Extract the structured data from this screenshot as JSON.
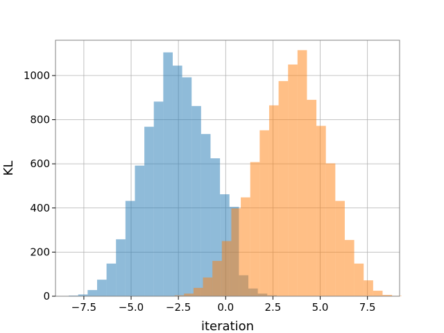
{
  "chart_data": {
    "type": "histogram",
    "title": "",
    "xlabel": "iteration",
    "ylabel": "KL",
    "xlim": [
      -9.0,
      9.2
    ],
    "ylim": [
      0,
      1160
    ],
    "grid": true,
    "legend": "none",
    "bar_alpha": 0.5,
    "x_ticks": [
      {
        "value": -7.5,
        "label": "−7.5"
      },
      {
        "value": -5.0,
        "label": "−5.0"
      },
      {
        "value": -2.5,
        "label": "−2.5"
      },
      {
        "value": 0.0,
        "label": "0.0"
      },
      {
        "value": 2.5,
        "label": "2.5"
      },
      {
        "value": 5.0,
        "label": "5.0"
      },
      {
        "value": 7.5,
        "label": "7.5"
      }
    ],
    "y_ticks": [
      {
        "value": 0,
        "label": "0"
      },
      {
        "value": 200,
        "label": "200"
      },
      {
        "value": 400,
        "label": "400"
      },
      {
        "value": 600,
        "label": "600"
      },
      {
        "value": 800,
        "label": "800"
      },
      {
        "value": 1000,
        "label": "1000"
      }
    ],
    "series": [
      {
        "color": "#1f77b4",
        "bin_start": -8.3,
        "bin_width": 0.5,
        "values": [
          3,
          8,
          28,
          75,
          148,
          258,
          432,
          592,
          768,
          882,
          1105,
          1045,
          992,
          862,
          735,
          625,
          462,
          405,
          95,
          35,
          12,
          4,
          1
        ]
      },
      {
        "color": "#ff7f0e",
        "bin_start": -2.7,
        "bin_width": 0.5,
        "values": [
          4,
          12,
          38,
          85,
          160,
          250,
          398,
          448,
          608,
          752,
          865,
          975,
          1050,
          1115,
          890,
          772,
          602,
          432,
          255,
          148,
          72,
          25,
          6,
          2
        ]
      }
    ]
  }
}
